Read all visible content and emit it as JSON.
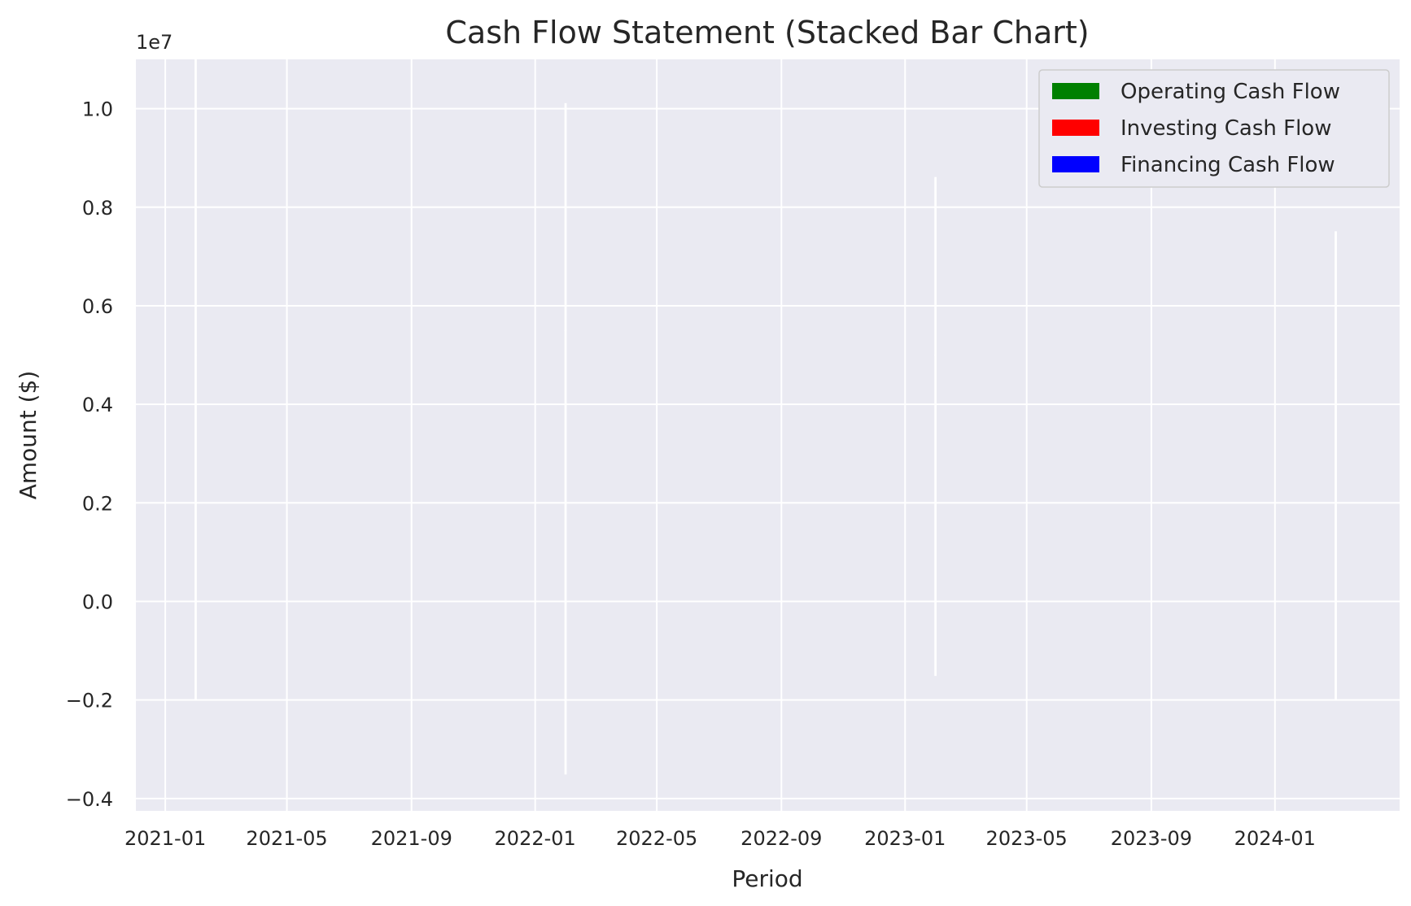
{
  "chart_data": {
    "type": "bar",
    "stacked": true,
    "title": "Cash Flow Statement (Stacked Bar Chart)",
    "xlabel": "Period",
    "ylabel": "Amount ($)",
    "y_offset_label": "1e7",
    "y_scale_factor": 10000000,
    "ylim": [
      -4250000,
      11000000
    ],
    "yticks": [
      -4000000,
      -2000000,
      0,
      2000000,
      4000000,
      6000000,
      8000000,
      10000000
    ],
    "ytick_labels": [
      "−0.4",
      "−0.2",
      "0.0",
      "0.2",
      "0.4",
      "0.6",
      "0.8",
      "1.0"
    ],
    "xlim": [
      "2020-12-03",
      "2024-05-03"
    ],
    "xticks": [
      "2021-01-01",
      "2021-05-01",
      "2021-09-01",
      "2022-01-01",
      "2022-05-01",
      "2022-09-01",
      "2023-01-01",
      "2023-05-01",
      "2023-09-01",
      "2024-01-01"
    ],
    "xtick_labels": [
      "2021-01",
      "2021-05",
      "2021-09",
      "2022-01",
      "2022-05",
      "2022-09",
      "2023-01",
      "2023-05",
      "2023-09",
      "2024-01"
    ],
    "categories": [
      "2021-01-31",
      "2022-01-31",
      "2023-01-31",
      "2024-03-01"
    ],
    "series": [
      {
        "name": "Operating Cash Flow",
        "color": "#008000",
        "values": [
          5000000,
          5500000,
          5000000,
          4500000
        ]
      },
      {
        "name": "Investing Cash Flow",
        "color": "#ff0000",
        "values": [
          -2000000,
          -3500000,
          -1500000,
          -2000000
        ]
      },
      {
        "name": "Financing Cash Flow",
        "color": "#0000ff",
        "values": [
          6000000,
          4600000,
          3600000,
          3000000
        ]
      }
    ],
    "bar_width_days": 1,
    "grid": true,
    "legend_position": "top-right",
    "colors": {
      "background": "#eaeaf2",
      "grid": "#ffffff",
      "text": "#262626"
    }
  }
}
